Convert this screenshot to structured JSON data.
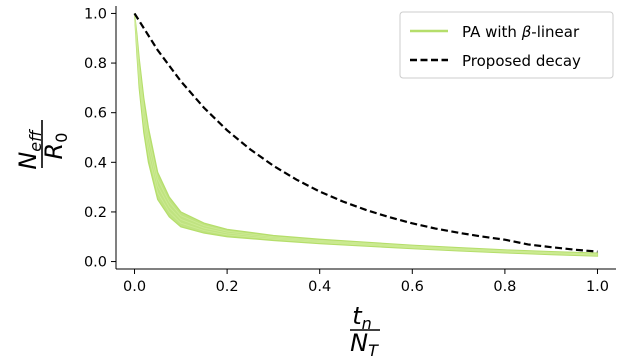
{
  "chart_data": {
    "type": "line",
    "xlabel": {
      "num": "t",
      "num_sub": "n",
      "den": "N",
      "den_sub": "T"
    },
    "ylabel": {
      "num": "N",
      "num_sub": "eff",
      "den": "R",
      "den_sub": "0"
    },
    "xlim": [
      -0.04,
      1.04
    ],
    "ylim": [
      -0.03,
      1.03
    ],
    "xticks": [
      0.0,
      0.2,
      0.4,
      0.6,
      0.8,
      1.0
    ],
    "yticks": [
      0.0,
      0.2,
      0.4,
      0.6,
      0.8,
      1.0
    ],
    "xtick_labels": [
      "0.0",
      "0.2",
      "0.4",
      "0.6",
      "0.8",
      "1.0"
    ],
    "ytick_labels": [
      "0.0",
      "0.2",
      "0.4",
      "0.6",
      "0.8",
      "1.0"
    ],
    "grid": false,
    "legend_position": "top-right",
    "series": [
      {
        "name": "PA with β-linear",
        "legend_prefix": "PA with ",
        "legend_symbol": "β",
        "legend_suffix": "-linear",
        "color": "#b5de6b",
        "style": "solid",
        "band": true,
        "x": [
          0.0,
          0.005,
          0.01,
          0.02,
          0.03,
          0.05,
          0.075,
          0.1,
          0.15,
          0.2,
          0.3,
          0.4,
          0.5,
          0.6,
          0.7,
          0.8,
          0.9,
          1.0
        ],
        "lower": [
          1.0,
          0.84,
          0.7,
          0.52,
          0.4,
          0.25,
          0.18,
          0.14,
          0.115,
          0.1,
          0.085,
          0.072,
          0.062,
          0.052,
          0.043,
          0.035,
          0.028,
          0.022
        ],
        "upper": [
          1.0,
          0.92,
          0.82,
          0.66,
          0.54,
          0.36,
          0.26,
          0.2,
          0.155,
          0.13,
          0.105,
          0.09,
          0.078,
          0.066,
          0.056,
          0.047,
          0.04,
          0.034
        ]
      },
      {
        "name": "Proposed decay",
        "color": "#000000",
        "style": "dashed",
        "x": [
          0.0,
          0.05,
          0.1,
          0.15,
          0.2,
          0.25,
          0.3,
          0.35,
          0.4,
          0.45,
          0.5,
          0.55,
          0.6,
          0.65,
          0.7,
          0.75,
          0.8,
          0.85,
          0.9,
          0.95,
          1.0
        ],
        "y": [
          1.0,
          0.852,
          0.727,
          0.62,
          0.529,
          0.452,
          0.386,
          0.33,
          0.282,
          0.242,
          0.208,
          0.179,
          0.154,
          0.133,
          0.116,
          0.101,
          0.088,
          0.069,
          0.058,
          0.048,
          0.04
        ]
      }
    ]
  }
}
